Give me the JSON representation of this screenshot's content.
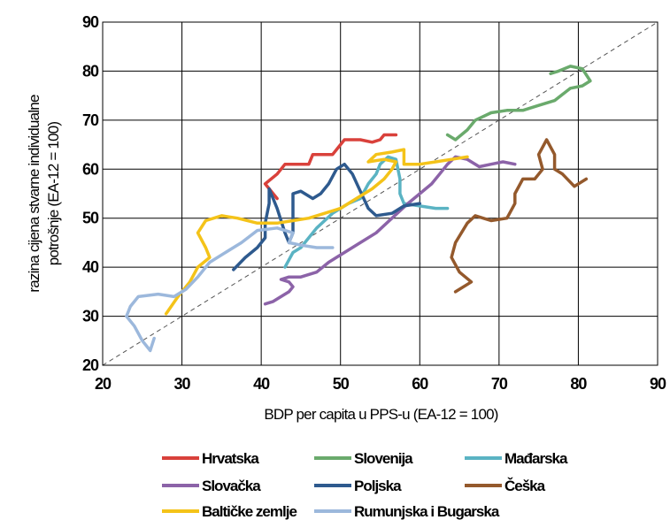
{
  "chart_data": {
    "type": "line",
    "xlabel": "BDP per capita u PPS-u (EA-12 = 100)",
    "ylabel_lines": [
      "razina cijena stvarne individualne",
      "potrošnje (EA-12 = 100)"
    ],
    "xlim": [
      20,
      90
    ],
    "ylim": [
      20,
      90
    ],
    "x_ticks": [
      "20",
      "30",
      "40",
      "50",
      "60",
      "70",
      "80",
      "90"
    ],
    "y_ticks": [
      "20",
      "30",
      "40",
      "50",
      "60",
      "70",
      "80",
      "90"
    ],
    "grid": true,
    "reference_line": "diagonal y = x (dashed)",
    "series": [
      {
        "name": "Hrvatska",
        "color": "#d9413b",
        "values": [
          [
            42,
            54
          ],
          [
            40.5,
            57
          ],
          [
            42,
            59
          ],
          [
            43,
            61
          ],
          [
            46,
            61
          ],
          [
            46.5,
            63
          ],
          [
            49,
            63
          ],
          [
            50.5,
            66
          ],
          [
            52.5,
            66
          ],
          [
            54,
            65.5
          ],
          [
            55,
            66
          ],
          [
            55.5,
            67
          ],
          [
            57,
            67
          ]
        ]
      },
      {
        "name": "Slovenija",
        "color": "#6aaa6c",
        "values": [
          [
            63.5,
            67
          ],
          [
            64.5,
            66
          ],
          [
            66,
            68
          ],
          [
            67,
            70
          ],
          [
            69,
            71.5
          ],
          [
            71,
            72
          ],
          [
            73,
            72
          ],
          [
            75,
            73
          ],
          [
            77,
            74
          ],
          [
            79,
            76.5
          ],
          [
            80.5,
            77
          ],
          [
            81.5,
            78
          ],
          [
            80.5,
            80.5
          ],
          [
            79,
            81
          ],
          [
            77.5,
            80
          ],
          [
            76.5,
            79.5
          ]
        ]
      },
      {
        "name": "Mađarska",
        "color": "#5ab3c3",
        "values": [
          [
            43,
            40
          ],
          [
            44,
            43
          ],
          [
            45,
            44
          ],
          [
            47,
            48
          ],
          [
            49,
            51
          ],
          [
            51,
            53
          ],
          [
            52.5,
            54
          ],
          [
            53.5,
            57
          ],
          [
            54.5,
            59
          ],
          [
            55,
            61
          ],
          [
            56,
            62.5
          ],
          [
            57,
            62
          ],
          [
            57.5,
            58
          ],
          [
            57.5,
            55
          ],
          [
            58,
            53
          ],
          [
            60,
            52.5
          ],
          [
            62,
            52
          ],
          [
            63.5,
            52
          ]
        ]
      },
      {
        "name": "Slovačka",
        "color": "#8c63a8",
        "values": [
          [
            40.5,
            32.5
          ],
          [
            41.5,
            33
          ],
          [
            42.5,
            34
          ],
          [
            43.5,
            35
          ],
          [
            44,
            36
          ],
          [
            43.5,
            37
          ],
          [
            42.5,
            37.5
          ],
          [
            43.5,
            38
          ],
          [
            45,
            38
          ],
          [
            47,
            39
          ],
          [
            48.5,
            41
          ],
          [
            50.5,
            43
          ],
          [
            52.5,
            45
          ],
          [
            54.5,
            47
          ],
          [
            56.5,
            50
          ],
          [
            58.5,
            53
          ],
          [
            60,
            55
          ],
          [
            61.5,
            57
          ],
          [
            62.5,
            59
          ],
          [
            63.5,
            61
          ],
          [
            64.5,
            62.5
          ],
          [
            66,
            62
          ],
          [
            67.5,
            60.5
          ],
          [
            69,
            61
          ],
          [
            70.5,
            61.5
          ],
          [
            72,
            61
          ]
        ]
      },
      {
        "name": "Poljska",
        "color": "#2e5a8e",
        "values": [
          [
            36.5,
            39.5
          ],
          [
            38,
            42
          ],
          [
            39.5,
            44
          ],
          [
            40.5,
            46
          ],
          [
            40.5,
            49
          ],
          [
            41,
            53
          ],
          [
            41,
            56
          ],
          [
            42,
            52
          ],
          [
            43,
            47
          ],
          [
            43.5,
            45
          ],
          [
            44,
            47
          ],
          [
            44,
            52
          ],
          [
            44,
            55
          ],
          [
            45,
            55.5
          ],
          [
            46.5,
            54
          ],
          [
            47.5,
            55
          ],
          [
            48.5,
            57
          ],
          [
            49.5,
            60
          ],
          [
            50.5,
            61
          ],
          [
            51.5,
            59
          ],
          [
            52.5,
            55.5
          ],
          [
            53.5,
            52
          ],
          [
            54.5,
            50.5
          ],
          [
            56.5,
            51
          ],
          [
            58,
            52.5
          ],
          [
            60,
            53
          ]
        ]
      },
      {
        "name": "Češka",
        "color": "#94592c",
        "values": [
          [
            64.5,
            35
          ],
          [
            66.5,
            37
          ],
          [
            65,
            39
          ],
          [
            64,
            42
          ],
          [
            64.5,
            45
          ],
          [
            66,
            49
          ],
          [
            67,
            50.5
          ],
          [
            69,
            49.5
          ],
          [
            71,
            50
          ],
          [
            72,
            53
          ],
          [
            72,
            55
          ],
          [
            73,
            58
          ],
          [
            74.5,
            58
          ],
          [
            75.5,
            60
          ],
          [
            75,
            63
          ],
          [
            76,
            66
          ],
          [
            77,
            63
          ],
          [
            77,
            60
          ],
          [
            78,
            59
          ],
          [
            79.5,
            56.5
          ],
          [
            81,
            58
          ]
        ]
      },
      {
        "name": "Baltičke zemlje",
        "color": "#f4c319",
        "values": [
          [
            28,
            30.5
          ],
          [
            29.5,
            34
          ],
          [
            31,
            37
          ],
          [
            32,
            40
          ],
          [
            33.5,
            42
          ],
          [
            33,
            44
          ],
          [
            32,
            47
          ],
          [
            33,
            49.5
          ],
          [
            35,
            50.5
          ],
          [
            37,
            50
          ],
          [
            39.5,
            49
          ],
          [
            42,
            49
          ],
          [
            44,
            49.5
          ],
          [
            46,
            50
          ],
          [
            48,
            51
          ],
          [
            50,
            52
          ],
          [
            52,
            54
          ],
          [
            54,
            56
          ],
          [
            55.5,
            58
          ],
          [
            56.5,
            60
          ],
          [
            57,
            61.5
          ],
          [
            55.5,
            62
          ],
          [
            53.5,
            61.5
          ],
          [
            54.5,
            63
          ],
          [
            56.5,
            63.5
          ],
          [
            58,
            64
          ],
          [
            58,
            61
          ],
          [
            60,
            61
          ],
          [
            62,
            61.5
          ],
          [
            64,
            62
          ],
          [
            66,
            62.5
          ]
        ]
      },
      {
        "name": "Rumunjska i Bugarska",
        "color": "#9cb8dc",
        "values": [
          [
            26.5,
            25.5
          ],
          [
            26,
            23
          ],
          [
            25,
            25
          ],
          [
            24,
            28
          ],
          [
            23,
            30
          ],
          [
            23.5,
            32
          ],
          [
            24.5,
            34
          ],
          [
            27,
            34.5
          ],
          [
            29,
            34
          ],
          [
            30.5,
            35.5
          ],
          [
            32,
            38
          ],
          [
            33.5,
            41
          ],
          [
            35.5,
            43
          ],
          [
            37.5,
            45
          ],
          [
            39.5,
            47.5
          ],
          [
            42,
            48
          ],
          [
            44,
            47
          ],
          [
            43.5,
            45
          ],
          [
            45,
            44.5
          ],
          [
            47,
            44
          ],
          [
            49,
            44
          ]
        ]
      }
    ]
  },
  "legend": {
    "rows": [
      [
        "Hrvatska",
        "Slovenija",
        "Mađarska"
      ],
      [
        "Slovačka",
        "Poljska",
        "Češka"
      ],
      [
        "Baltičke zemlje",
        "Rumunjska i Bugarska"
      ]
    ]
  }
}
